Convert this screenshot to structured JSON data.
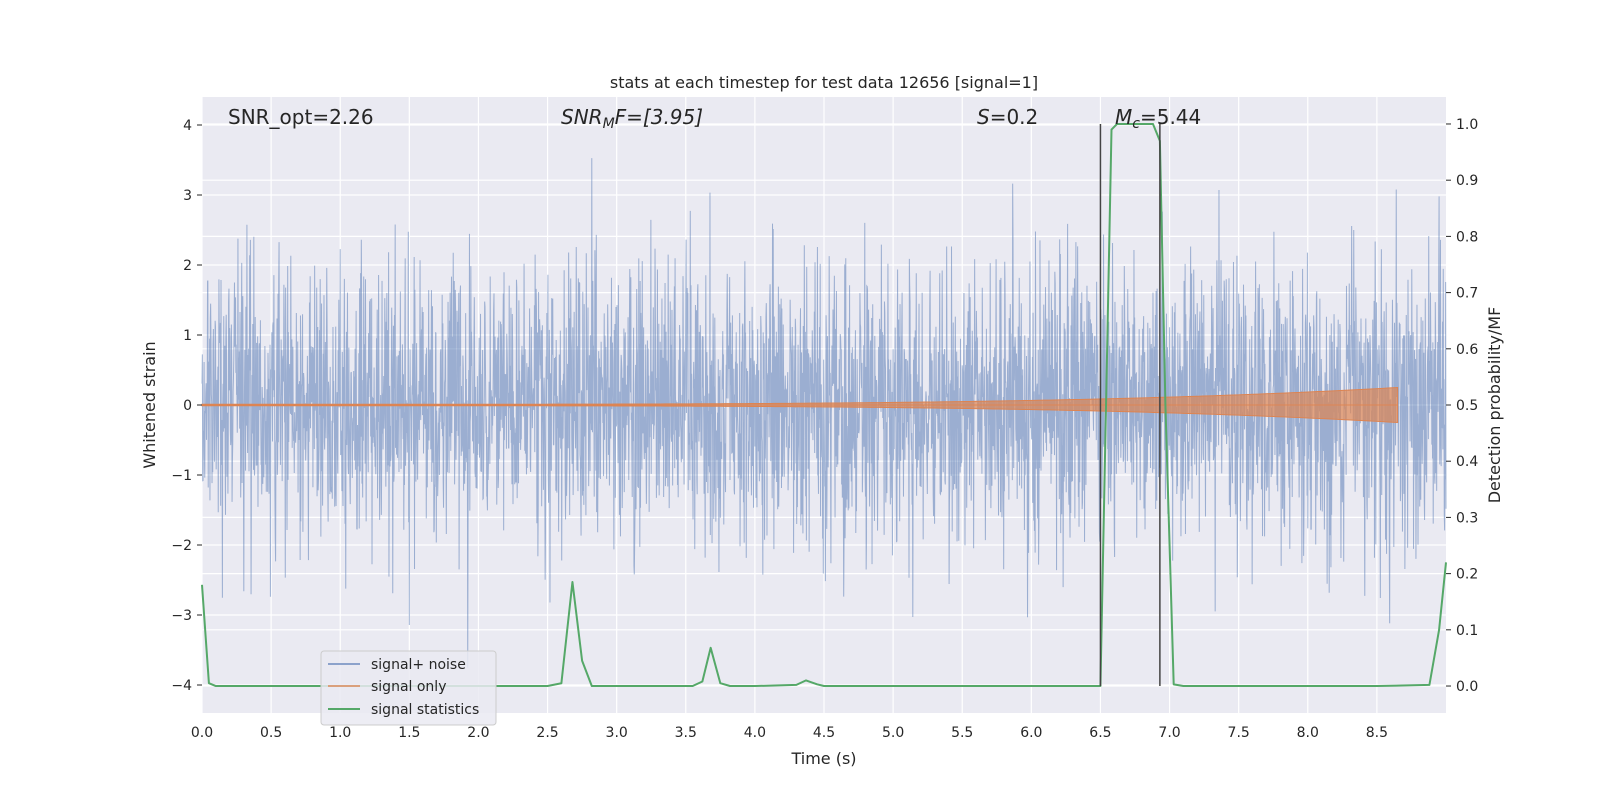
{
  "chart_data": {
    "type": "line",
    "title": "stats at each timestep for test data 12656 [signal=1]",
    "xlabel": "Time (s)",
    "ylabel": "Whitened strain",
    "ylabel_right": "Detection probability/MF",
    "xlim": [
      0.0,
      9.0
    ],
    "ylim": [
      -4.4,
      4.4
    ],
    "ylim_right": [
      -0.048,
      1.048
    ],
    "x_ticks": [
      "0.0",
      "0.5",
      "1.0",
      "1.5",
      "2.0",
      "2.5",
      "3.0",
      "3.5",
      "4.0",
      "4.5",
      "5.0",
      "5.5",
      "6.0",
      "6.5",
      "7.0",
      "7.5",
      "8.0",
      "8.5"
    ],
    "y_ticks": [
      "−4",
      "−3",
      "−2",
      "−1",
      "0",
      "1",
      "2",
      "3",
      "4"
    ],
    "y_ticks_right": [
      "0.0",
      "0.1",
      "0.2",
      "0.3",
      "0.4",
      "0.5",
      "0.6",
      "0.7",
      "0.8",
      "0.9",
      "1.0"
    ],
    "grid": true,
    "legend_position": "lower-left",
    "annotations": {
      "snr_opt": "SNR_opt=2.26",
      "snr_mf_prefix": "SNR",
      "snr_mf_sub": "M",
      "snr_mf_suffix": "F=[3.95]",
      "s_var": "S",
      "s_val": "=0.2",
      "mc_var": "M",
      "mc_sub": "c",
      "mc_val": "=5.44"
    },
    "vertical_lines": [
      {
        "x": 6.5,
        "y_range": [
          0.0,
          1.0
        ]
      },
      {
        "x": 6.93,
        "y_range": [
          0.0,
          1.0
        ]
      }
    ],
    "series": [
      {
        "name": "signal+ noise",
        "color": "#4c72b0",
        "axis": "left",
        "kind": "noise",
        "x_range": [
          0.0,
          9.0
        ],
        "envelope_typical": 2.0,
        "envelope_max": 4.0
      },
      {
        "name": "signal only",
        "color": "#dd8452",
        "axis": "left",
        "kind": "chirp",
        "x_range": [
          0.0,
          8.65
        ],
        "amplitude_start": 0.01,
        "amplitude_end": 0.25
      },
      {
        "name": "signal statistics",
        "color": "#55a868",
        "axis": "right",
        "kind": "line",
        "x": [
          0.0,
          0.05,
          0.1,
          1.0,
          2.0,
          2.5,
          2.6,
          2.68,
          2.75,
          2.82,
          2.9,
          3.0,
          3.55,
          3.62,
          3.68,
          3.75,
          3.82,
          3.9,
          4.0,
          4.3,
          4.37,
          4.45,
          4.5,
          5.0,
          5.5,
          6.0,
          6.5,
          6.58,
          6.62,
          6.7,
          6.8,
          6.88,
          6.93,
          6.97,
          7.03,
          7.1,
          7.5,
          8.0,
          8.5,
          8.88,
          8.95,
          9.0
        ],
        "y": [
          0.18,
          0.005,
          0.0,
          0.0,
          0.0,
          0.0,
          0.005,
          0.185,
          0.045,
          0.0,
          0.0,
          0.0,
          0.0,
          0.008,
          0.068,
          0.005,
          0.0,
          0.0,
          0.0,
          0.002,
          0.01,
          0.003,
          0.0,
          0.0,
          0.0,
          0.0,
          0.0,
          0.99,
          1.0,
          1.0,
          1.0,
          1.0,
          0.97,
          0.5,
          0.003,
          0.0,
          0.0,
          0.0,
          0.0,
          0.002,
          0.1,
          0.22
        ]
      }
    ]
  }
}
